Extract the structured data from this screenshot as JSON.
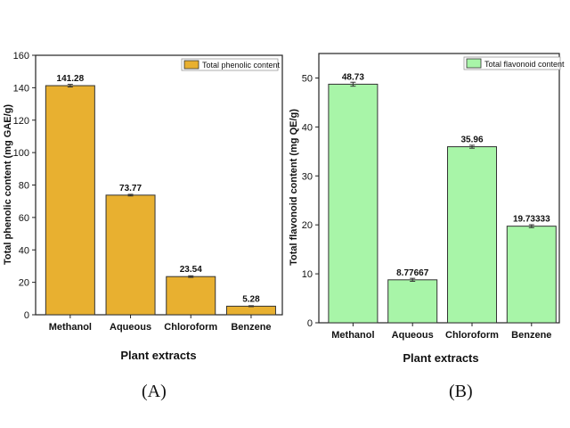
{
  "chart_data": [
    {
      "type": "bar",
      "panel_label": "(A)",
      "categories": [
        "Methanol",
        "Aqueous",
        "Chloroform",
        "Benzene"
      ],
      "values": [
        141.28,
        73.77,
        23.54,
        5.28
      ],
      "data_labels": [
        "141.28",
        "73.77",
        "23.54",
        "5.28"
      ],
      "series": [
        {
          "name": "Total phenolic  content",
          "values": [
            141.28,
            73.77,
            23.54,
            5.28
          ]
        }
      ],
      "xlabel": "Plant extracts",
      "ylabel": "Total phenolic  content (mg GAE/g)",
      "ylim": [
        0,
        160
      ],
      "yticks": [
        0,
        20,
        40,
        60,
        80,
        100,
        120,
        140,
        160
      ],
      "error_bars": [
        0.8,
        0.5,
        0.5,
        0.3
      ],
      "bar_color": "#E8B030",
      "legend_position": "top-right",
      "grid": false
    },
    {
      "type": "bar",
      "panel_label": "(B)",
      "categories": [
        "Methanol",
        "Aqueous",
        "Chloroform",
        "Benzene"
      ],
      "values": [
        48.73,
        8.77667,
        35.96,
        19.73333
      ],
      "data_labels": [
        "48.73",
        "8.77667",
        "35.96",
        "19.73333"
      ],
      "series": [
        {
          "name": "Total flavonoid content",
          "values": [
            48.73,
            8.77667,
            35.96,
            19.73333
          ]
        }
      ],
      "xlabel": "Plant extracts",
      "ylabel": "Total flavonoid content (mg QE/g)",
      "ylim": [
        0,
        55
      ],
      "yticks": [
        0,
        10,
        20,
        30,
        40,
        50
      ],
      "error_bars": [
        0.4,
        0.3,
        0.3,
        0.3
      ],
      "bar_color": "#A8F5A8",
      "legend_position": "top-right",
      "grid": false
    }
  ]
}
